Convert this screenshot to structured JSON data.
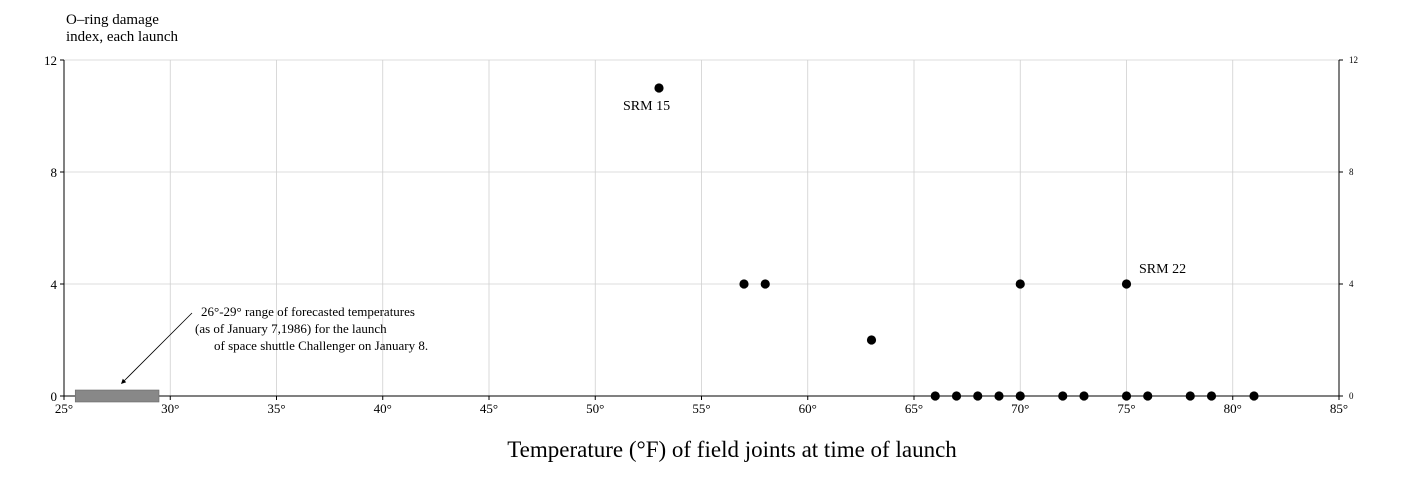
{
  "chart_data": {
    "type": "scatter",
    "title": "",
    "ylabel_line1": "O–ring damage",
    "ylabel_line2": "index, each launch",
    "xlabel": "Temperature (°F) of field joints at time of launch",
    "xlim": [
      25,
      85
    ],
    "ylim": [
      0,
      12
    ],
    "xticks": [
      25,
      30,
      35,
      40,
      45,
      50,
      55,
      60,
      65,
      70,
      75,
      80,
      85
    ],
    "xtick_labels": [
      "25°",
      "30°",
      "35°",
      "40°",
      "45°",
      "50°",
      "55°",
      "60°",
      "65°",
      "70°",
      "75°",
      "80°",
      "85°"
    ],
    "yticks": [
      0,
      4,
      8,
      12
    ],
    "ytick_labels": [
      "0",
      "4",
      "8",
      "12"
    ],
    "grid": true,
    "points": [
      {
        "x": 53,
        "y": 11
      },
      {
        "x": 57,
        "y": 4
      },
      {
        "x": 58,
        "y": 4
      },
      {
        "x": 63,
        "y": 2
      },
      {
        "x": 66,
        "y": 0
      },
      {
        "x": 67,
        "y": 0
      },
      {
        "x": 68,
        "y": 0
      },
      {
        "x": 69,
        "y": 0
      },
      {
        "x": 70,
        "y": 4
      },
      {
        "x": 70,
        "y": 0
      },
      {
        "x": 72,
        "y": 0
      },
      {
        "x": 73,
        "y": 0
      },
      {
        "x": 75,
        "y": 4
      },
      {
        "x": 75,
        "y": 0
      },
      {
        "x": 76,
        "y": 0
      },
      {
        "x": 78,
        "y": 0
      },
      {
        "x": 79,
        "y": 0
      },
      {
        "x": 81,
        "y": 0
      }
    ],
    "point_labels": [
      {
        "text": "SRM 15",
        "x": 53,
        "y": 11
      },
      {
        "text": "SRM 22",
        "x": 75,
        "y": 4
      }
    ],
    "forecast_range": {
      "from": 26,
      "to": 29,
      "color": "#888888"
    },
    "annotation_lines": [
      "26°-29° range of forecasted temperatures",
      "(as of January 7,1986) for the launch",
      "of space shuttle Challenger on January 8."
    ],
    "colors": {
      "points": "#000000",
      "grid": "#d0d0d0",
      "axis": "#000000"
    }
  }
}
